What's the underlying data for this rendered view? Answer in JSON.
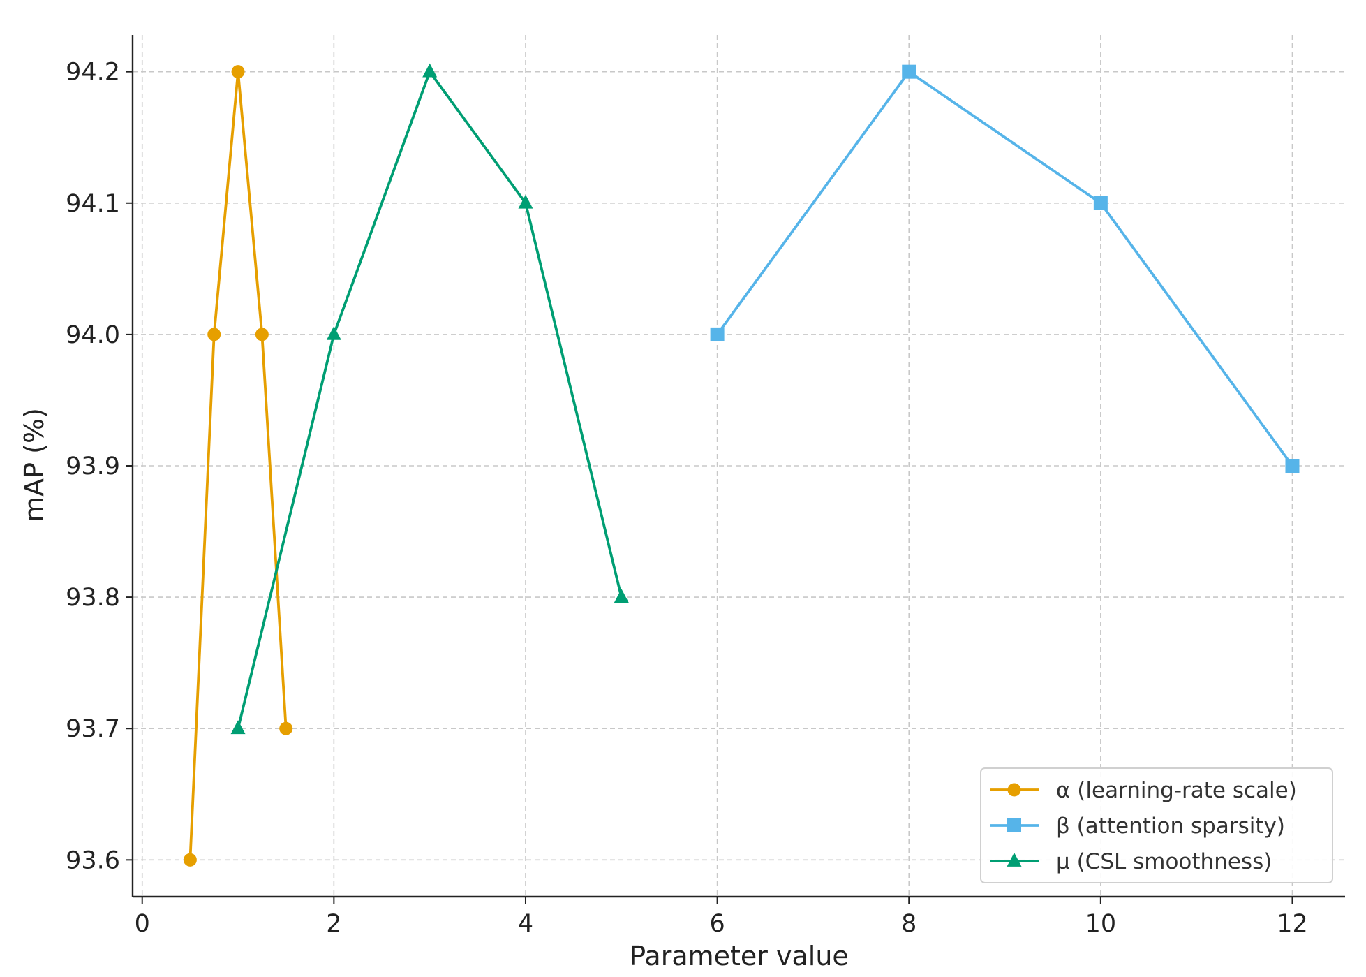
{
  "chart_data": {
    "type": "line",
    "title": "",
    "xlabel": "Parameter value",
    "ylabel": "mAP (%)",
    "xlim": [
      -0.1,
      12.55
    ],
    "ylim": [
      93.572,
      94.228
    ],
    "x_ticks": [
      0,
      2,
      4,
      6,
      8,
      10,
      12
    ],
    "y_ticks": [
      93.6,
      93.7,
      93.8,
      93.9,
      94.0,
      94.1,
      94.2
    ],
    "y_tick_labels": [
      "93.6",
      "93.7",
      "93.8",
      "93.9",
      "94.0",
      "94.1",
      "94.2"
    ],
    "grid": true,
    "legend_position": "bottom-right",
    "series": [
      {
        "name": "α (learning-rate scale)",
        "color": "#E69F00",
        "marker": "circle",
        "x": [
          0.5,
          0.75,
          1.0,
          1.25,
          1.5
        ],
        "y": [
          93.6,
          94.0,
          94.2,
          94.0,
          93.7
        ]
      },
      {
        "name": "β (attention sparsity)",
        "color": "#56B4E9",
        "marker": "square",
        "x": [
          6,
          8,
          10,
          12
        ],
        "y": [
          94.0,
          94.2,
          94.1,
          93.9
        ]
      },
      {
        "name": "μ (CSL smoothness)",
        "color": "#009E73",
        "marker": "triangle",
        "x": [
          1,
          2,
          3,
          4,
          5
        ],
        "y": [
          93.7,
          94.0,
          94.2,
          94.1,
          93.8
        ]
      }
    ]
  }
}
